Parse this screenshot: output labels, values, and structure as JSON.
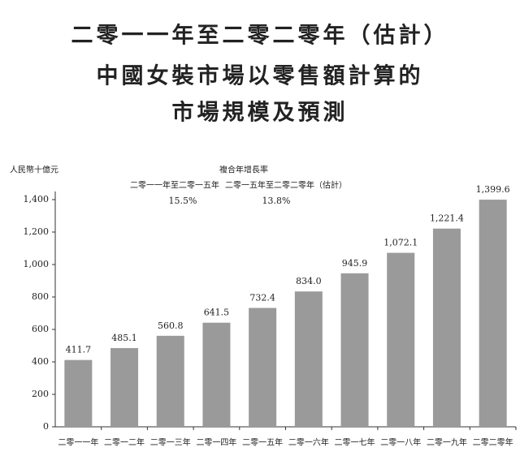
{
  "chart_data": {
    "type": "bar",
    "title": [
      "二零一一年至二零二零年（估計）",
      "中國女裝市場以零售額計算的",
      "市場規模及預測"
    ],
    "y_label": "人民幣十億元",
    "annotation": {
      "title": "複合年增長率",
      "periods": [
        {
          "label": "二零一一年至二零一五年",
          "rate": "15.5%"
        },
        {
          "label": "二零一五年至二零二零年（估計）",
          "rate": "13.8%"
        }
      ]
    },
    "categories": [
      "二零一一年",
      "二零一二年",
      "二零一三年",
      "二零一四年",
      "二零一五年",
      "二零一六年",
      "二零一七年",
      "二零一八年",
      "二零一九年",
      "二零二零年"
    ],
    "values": [
      411.7,
      485.1,
      560.8,
      641.5,
      732.4,
      834.0,
      945.9,
      1072.1,
      1221.4,
      1399.6
    ],
    "value_labels": [
      "411.7",
      "485.1",
      "560.8",
      "641.5",
      "732.4",
      "834.0",
      "945.9",
      "1,072.1",
      "1,221.4",
      "1,399.6"
    ],
    "color": "#9a9a9a",
    "ylim": [
      0,
      1450
    ],
    "yticks": [
      0,
      200,
      400,
      600,
      800,
      {
        "value": 1000,
        "label": "1,000"
      },
      {
        "value": 1200,
        "label": "1,200"
      },
      {
        "value": 1400,
        "label": "1,400"
      }
    ]
  }
}
